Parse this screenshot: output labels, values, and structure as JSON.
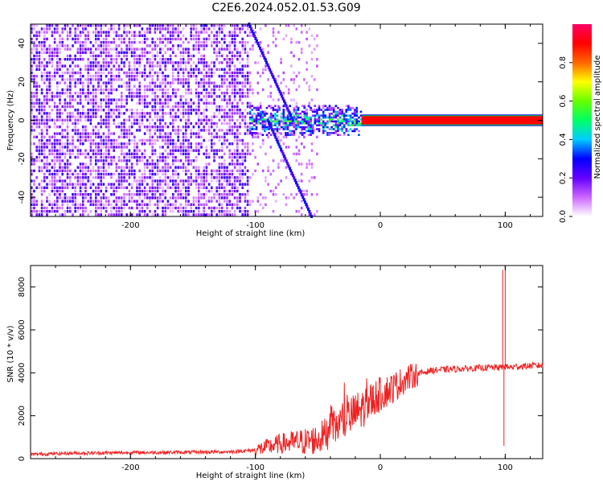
{
  "title": "C2E6.2024.052.01.53.G09",
  "chart_data": [
    {
      "type": "heatmap",
      "xlabel": "Height of straight line (km)",
      "ylabel": "Frequency (Hz)",
      "xlim": [
        -280,
        130
      ],
      "ylim": [
        -50,
        50
      ],
      "xticks": [
        -200,
        -100,
        0,
        100
      ],
      "yticks": [
        -40,
        -20,
        0,
        20,
        40
      ],
      "colorbar": {
        "label": "Normalized spectral amplitude",
        "range": [
          0,
          1
        ],
        "ticks": [
          0.0,
          0.2,
          0.4,
          0.6,
          0.8
        ],
        "tick_labels": [
          "0.0",
          "0.2",
          "0.4",
          "0.6",
          "0.8"
        ],
        "colors": [
          "#ffffff",
          "#cc66ff",
          "#6600ff",
          "#0000ff",
          "#00ccff",
          "#00ff66",
          "#66ff00",
          "#ffff00",
          "#ff6600",
          "#ff0000",
          "#ff0066"
        ]
      },
      "regions": [
        {
          "x_range": [
            -280,
            -105
          ],
          "freq_range": [
            -50,
            50
          ],
          "amplitude": 0.1
        },
        {
          "x_range": [
            -105,
            -15
          ],
          "freq_range": [
            -8,
            8
          ],
          "amplitude": 0.35
        },
        {
          "x_range": [
            -15,
            130
          ],
          "freq_range": [
            -1,
            1
          ],
          "amplitude": 0.9
        }
      ],
      "streaks": [
        {
          "x_start": -105,
          "x_end": -70,
          "freq_start": 50,
          "freq_end": 0
        },
        {
          "x_start": -90,
          "x_end": -55,
          "freq_start": 0,
          "freq_end": -50
        }
      ]
    },
    {
      "type": "line",
      "xlabel": "Height of straight line (km)",
      "ylabel": "SNR (10 * v/v)",
      "xlim": [
        -280,
        130
      ],
      "ylim": [
        0,
        9000
      ],
      "xticks": [
        -200,
        -100,
        0,
        100
      ],
      "yticks": [
        0,
        2000,
        4000,
        6000,
        8000
      ],
      "color": "#ee2222",
      "x": [
        -280,
        -250,
        -200,
        -150,
        -120,
        -100,
        -90,
        -80,
        -70,
        -60,
        -50,
        -40,
        -30,
        -20,
        -15,
        -10,
        0,
        10,
        20,
        30,
        40,
        50,
        70,
        90,
        97,
        100,
        103,
        110,
        130
      ],
      "y": [
        200,
        250,
        280,
        300,
        320,
        400,
        550,
        700,
        750,
        800,
        900,
        1300,
        1700,
        2100,
        2300,
        2600,
        3000,
        3300,
        3700,
        3950,
        4100,
        4150,
        4200,
        4250,
        4250,
        4300,
        4250,
        4300,
        4350
      ],
      "spikes": [
        {
          "x": 98,
          "y": 8800
        },
        {
          "x": 100,
          "y": 9000
        },
        {
          "x": 99,
          "y": 600
        }
      ]
    }
  ]
}
